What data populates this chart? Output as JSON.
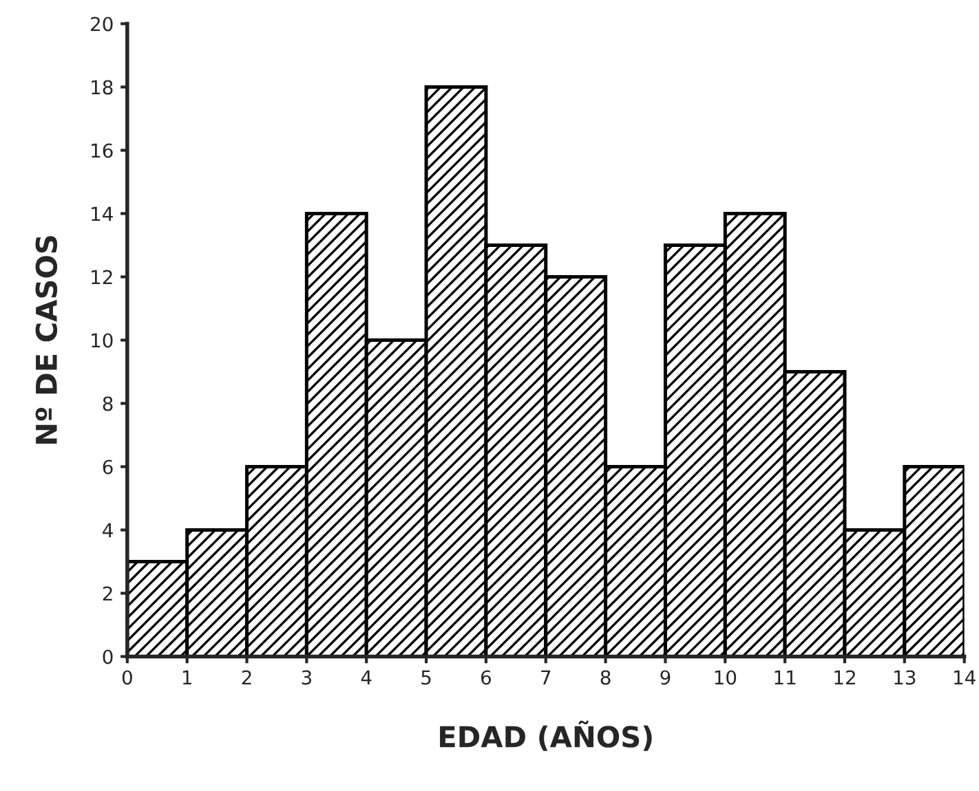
{
  "chart_data": {
    "type": "histogram",
    "xlabel": "EDAD (AÑOS)",
    "ylabel": "Nº DE CASOS",
    "bins": [
      0,
      1,
      2,
      3,
      4,
      5,
      6,
      7,
      8,
      9,
      10,
      11,
      12,
      13,
      14
    ],
    "values": [
      3,
      4,
      6,
      14,
      10,
      18,
      13,
      12,
      6,
      13,
      14,
      9,
      4,
      6
    ],
    "color": "#000000",
    "xlim": [
      0,
      14
    ],
    "xticks": [
      0,
      1,
      2,
      3,
      4,
      5,
      6,
      7,
      8,
      9,
      10,
      11,
      12,
      13,
      14
    ],
    "ylim": [
      0,
      20
    ],
    "yticks": [
      0,
      2,
      4,
      6,
      8,
      10,
      12,
      14,
      16,
      18,
      20
    ],
    "grid": false
  }
}
